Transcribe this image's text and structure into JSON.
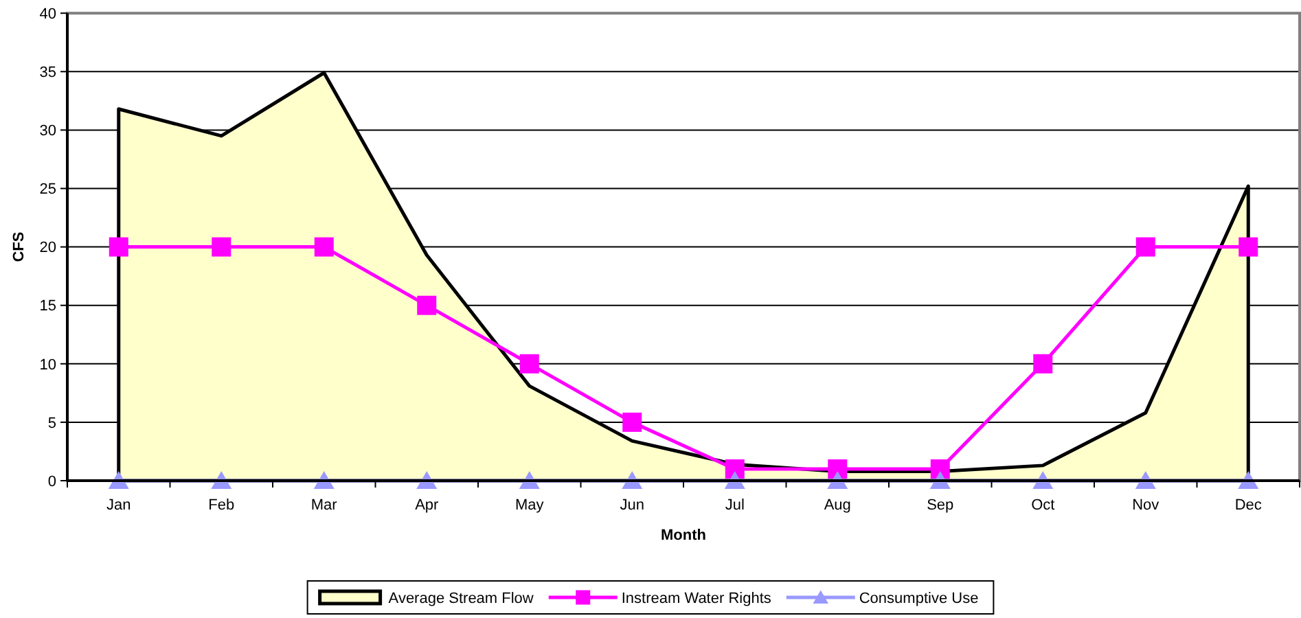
{
  "chart_data": {
    "type": "line",
    "xlabel": "Month",
    "ylabel": "CFS",
    "categories": [
      "Jan",
      "Feb",
      "Mar",
      "Apr",
      "May",
      "Jun",
      "Jul",
      "Aug",
      "Sep",
      "Oct",
      "Nov",
      "Dec"
    ],
    "ylim": [
      0,
      40
    ],
    "yticks": [
      0,
      5,
      10,
      15,
      20,
      25,
      30,
      35,
      40
    ],
    "grid": "y",
    "legend": "bottom",
    "series": [
      {
        "name": "Average Stream Flow",
        "type": "area",
        "color": "#ffffcc",
        "marker": "none",
        "values": [
          31.8,
          29.5,
          34.9,
          19.3,
          8.1,
          3.4,
          1.4,
          0.8,
          0.8,
          1.3,
          5.8,
          25.2
        ]
      },
      {
        "name": "Instream Water Rights",
        "color": "#ff00ff",
        "marker": "square",
        "values": [
          20,
          20,
          20,
          15,
          10,
          5,
          1,
          1,
          1,
          10,
          20,
          20
        ]
      },
      {
        "name": "Consumptive Use",
        "color": "#9999ff",
        "marker": "triangle",
        "values": [
          0,
          0,
          0,
          0,
          0,
          0,
          0,
          0,
          0,
          0,
          0,
          0
        ]
      }
    ]
  }
}
